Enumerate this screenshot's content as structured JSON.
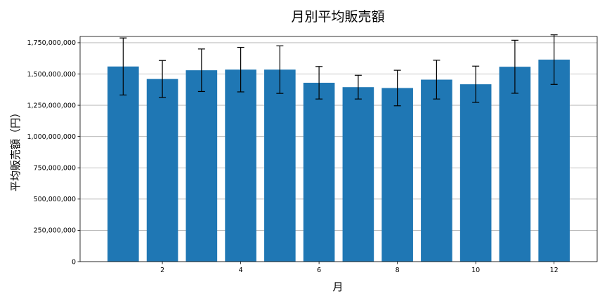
{
  "chart_data": {
    "type": "bar",
    "title": "月別平均販売額",
    "xlabel": "月",
    "ylabel": "平均販売額（円）",
    "x": [
      1,
      2,
      3,
      4,
      5,
      6,
      7,
      8,
      9,
      10,
      11,
      12
    ],
    "values": [
      1560000000,
      1460000000,
      1530000000,
      1535000000,
      1535000000,
      1430000000,
      1395000000,
      1388000000,
      1455000000,
      1418000000,
      1558000000,
      1615000000
    ],
    "error": [
      228000000,
      148000000,
      170000000,
      178000000,
      190000000,
      130000000,
      95000000,
      142000000,
      155000000,
      145000000,
      212000000,
      198000000
    ],
    "xlim": [
      -0.1,
      13.1
    ],
    "ylim": [
      0,
      1800000000
    ],
    "xticks": [
      2,
      4,
      6,
      8,
      10,
      12
    ],
    "xtick_labels": [
      "2",
      "4",
      "6",
      "8",
      "10",
      "12"
    ],
    "yticks": [
      0,
      250000000,
      500000000,
      750000000,
      1000000000,
      1250000000,
      1500000000,
      1750000000
    ],
    "ytick_labels": [
      "0",
      "250,000,000",
      "500,000,000",
      "750,000,000",
      "1,000,000,000",
      "1,250,000,000",
      "1,500,000,000",
      "1,750,000,000"
    ],
    "grid": "y",
    "bar_color": "#1f77b4",
    "errorbar_color": "#000000",
    "grid_color": "#b0b0b0"
  }
}
